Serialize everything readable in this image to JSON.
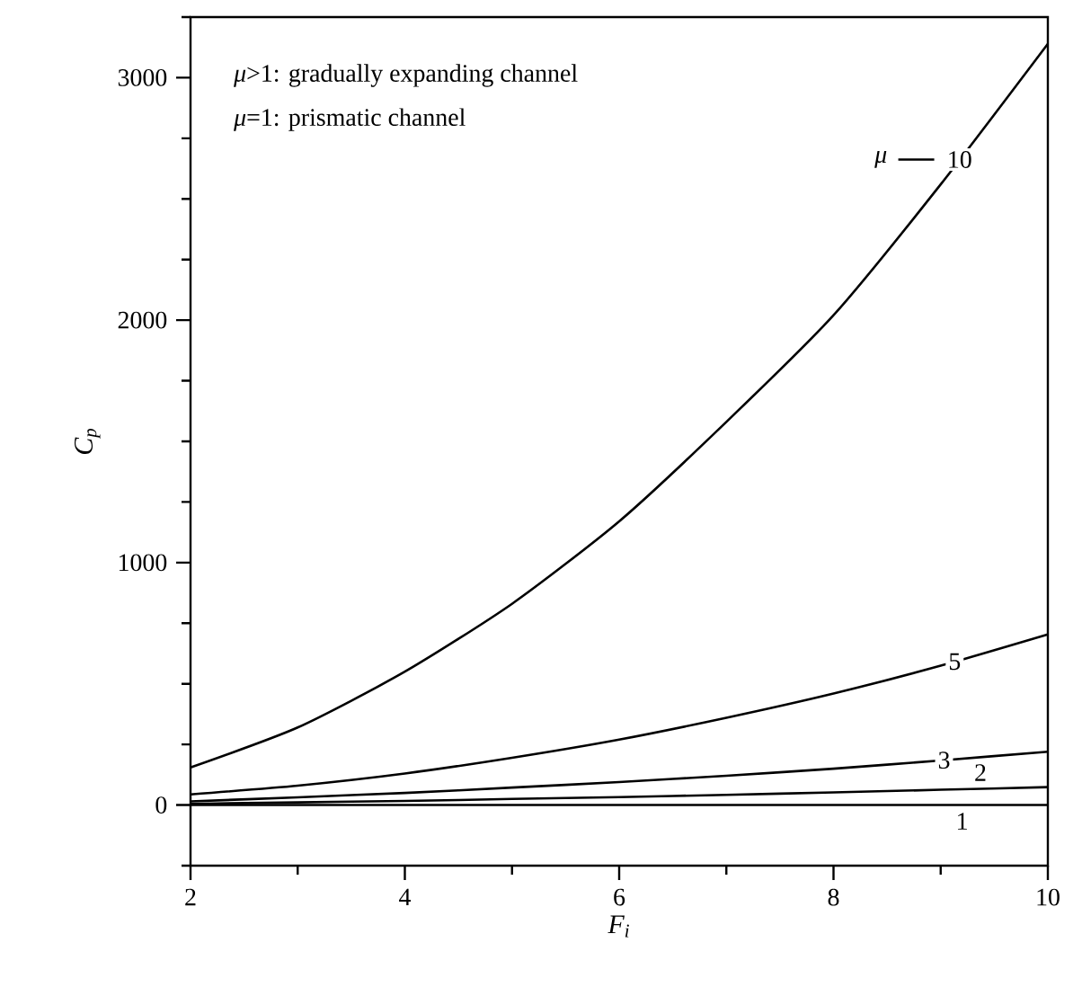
{
  "chart_data": {
    "type": "line",
    "xlabel": "F$_{i}$",
    "ylabel": "C$_{p}$",
    "x": [
      2,
      3,
      4,
      5,
      6,
      7,
      8,
      9,
      10
    ],
    "xlim": [
      2,
      10
    ],
    "ylim": [
      -250,
      3250
    ],
    "xticks": [
      2,
      {
        "value": 3,
        "label": null
      },
      4,
      {
        "value": 5,
        "label": null
      },
      6,
      {
        "value": 7,
        "label": null
      },
      8,
      {
        "value": 9,
        "label": null
      },
      10
    ],
    "yticks": [
      {
        "value": -250,
        "label": null
      },
      0,
      {
        "value": 250,
        "label": null
      },
      {
        "value": 500,
        "label": null
      },
      {
        "value": 750,
        "label": null
      },
      1000,
      {
        "value": 1250,
        "label": null
      },
      {
        "value": 1500,
        "label": null
      },
      {
        "value": 1750,
        "label": null
      },
      2000,
      {
        "value": 2250,
        "label": null
      },
      {
        "value": 2500,
        "label": null
      },
      {
        "value": 2750,
        "label": null
      },
      3000,
      {
        "value": 3250,
        "label": null
      }
    ],
    "series": [
      {
        "name": "1",
        "color": "#000000",
        "values": [
          0,
          0,
          0,
          0,
          0,
          0,
          0,
          0,
          0
        ]
      },
      {
        "name": "2",
        "color": "#000000",
        "values": [
          5,
          11,
          17,
          25,
          33,
          42,
          52,
          63,
          74
        ]
      },
      {
        "name": "3",
        "color": "#000000",
        "values": [
          15,
          32,
          50,
          72,
          95,
          121,
          150,
          184,
          220
        ]
      },
      {
        "name": "5",
        "color": "#000000",
        "values": [
          44,
          80,
          130,
          195,
          270,
          360,
          460,
          575,
          704
        ]
      },
      {
        "name": "10",
        "color": "#000000",
        "values": [
          155,
          320,
          550,
          830,
          1170,
          1580,
          2020,
          2560,
          3140
        ]
      }
    ],
    "annotations": [
      "*μ*>1: gradually expanding channel",
      "*μ*=1: prismatic channel",
      "μ"
    ]
  }
}
